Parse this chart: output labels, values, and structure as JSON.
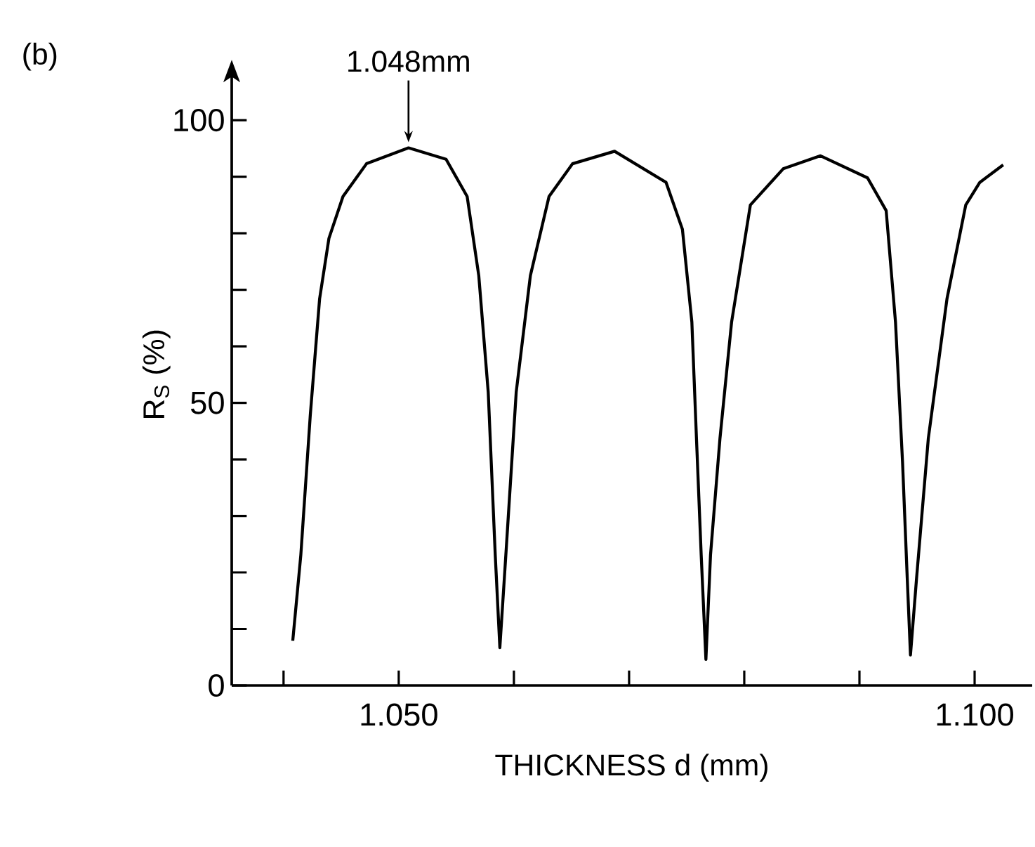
{
  "chart_data": {
    "type": "line",
    "title": "(b)",
    "xlabel": "THICKNESS  d  (mm)",
    "ylabel": "R$_{S}$ (%)",
    "annotations": [
      {
        "text": "1.048mm",
        "x": 1.05085,
        "y": 95.1
      }
    ],
    "xlim": [
      1.0355,
      1.105
    ],
    "ylim": [
      0,
      110
    ],
    "xticks": [
      {
        "value": 1.04,
        "label": null
      },
      {
        "value": 1.05,
        "label": "1.050"
      },
      {
        "value": 1.06,
        "label": null
      },
      {
        "value": 1.07,
        "label": null
      },
      {
        "value": 1.08,
        "label": null
      },
      {
        "value": 1.09,
        "label": null
      },
      {
        "value": 1.1,
        "label": "1.100"
      }
    ],
    "yticks": [
      0,
      {
        "value": 10,
        "label": null
      },
      {
        "value": 20,
        "label": null
      },
      {
        "value": 30,
        "label": null
      },
      {
        "value": 40,
        "label": null
      },
      50,
      {
        "value": 60,
        "label": null
      },
      {
        "value": 70,
        "label": null
      },
      {
        "value": 80,
        "label": null
      },
      {
        "value": 90,
        "label": null
      },
      100
    ],
    "series": [
      {
        "color": "#000000",
        "x": [
          1.0408,
          1.0415,
          1.04232,
          1.04313,
          1.04394,
          1.04516,
          1.0472,
          1.05085,
          1.05411,
          1.05594,
          1.05695,
          1.05777,
          1.05838,
          1.05878,
          1.0593,
          1.0602,
          1.06143,
          1.06305,
          1.06509,
          1.06874,
          1.07321,
          1.07463,
          1.07545,
          1.07585,
          1.07626,
          1.07667,
          1.07707,
          1.07789,
          1.0789,
          1.08053,
          1.08338,
          1.08662,
          1.0907,
          1.09232,
          1.09313,
          1.09374,
          1.09415,
          1.09443,
          1.09496,
          1.09598,
          1.0976,
          1.09923,
          1.10045,
          1.10248
        ],
        "values": [
          7.9,
          23.1,
          47.8,
          68.4,
          79.1,
          86.5,
          92.3,
          95.1,
          93.1,
          86.5,
          72.5,
          51.9,
          23.1,
          6.7,
          23.1,
          51.9,
          72.5,
          86.5,
          92.3,
          94.5,
          89.0,
          80.7,
          64.3,
          43.7,
          23.1,
          4.6,
          23.1,
          43.7,
          64.3,
          85.0,
          91.4,
          93.7,
          89.8,
          84.0,
          64.3,
          39.6,
          19.0,
          5.4,
          19.0,
          43.7,
          68.4,
          85.0,
          89.0,
          92.1
        ]
      }
    ]
  }
}
